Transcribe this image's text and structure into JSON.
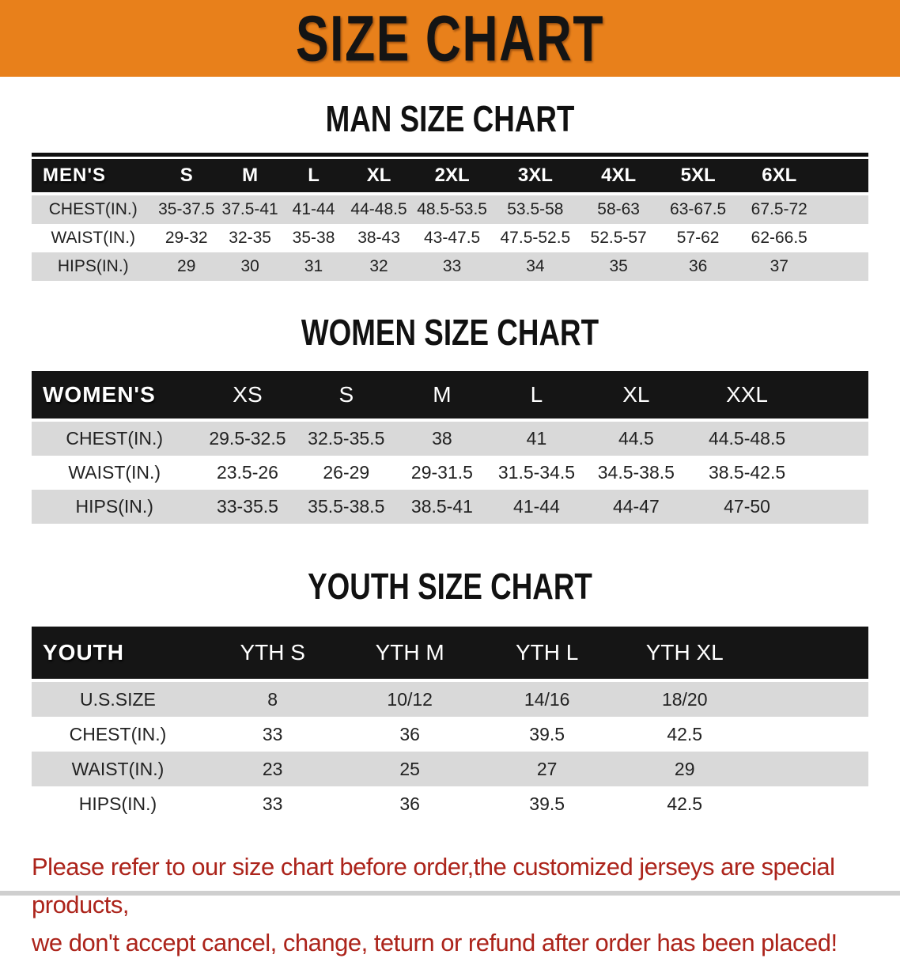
{
  "banner": {
    "title": "SIZE CHART"
  },
  "colors": {
    "banner_bg": "#E8801B",
    "header_bar": "#151515",
    "row_stripe": "#D9D9D9",
    "disclaimer_red": "#AC241B"
  },
  "sections": [
    {
      "heading": "MAN SIZE CHART",
      "table": {
        "label": "MEN'S",
        "columns": [
          "S",
          "M",
          "L",
          "XL",
          "2XL",
          "3XL",
          "4XL",
          "5XL",
          "6XL"
        ],
        "rows": [
          {
            "label": "CHEST(IN.)",
            "values": [
              "35-37.5",
              "37.5-41",
              "41-44",
              "44-48.5",
              "48.5-53.5",
              "53.5-58",
              "58-63",
              "63-67.5",
              "67.5-72"
            ]
          },
          {
            "label": "WAIST(IN.)",
            "values": [
              "29-32",
              "32-35",
              "35-38",
              "38-43",
              "43-47.5",
              "47.5-52.5",
              "52.5-57",
              "57-62",
              "62-66.5"
            ]
          },
          {
            "label": "HIPS(IN.)",
            "values": [
              "29",
              "30",
              "31",
              "32",
              "33",
              "34",
              "35",
              "36",
              "37"
            ]
          }
        ]
      }
    },
    {
      "heading": "WOMEN SIZE CHART",
      "table": {
        "label": "WOMEN'S",
        "columns": [
          "XS",
          "S",
          "M",
          "L",
          "XL",
          "XXL"
        ],
        "rows": [
          {
            "label": "CHEST(IN.)",
            "values": [
              "29.5-32.5",
              "32.5-35.5",
              "38",
              "41",
              "44.5",
              "44.5-48.5"
            ]
          },
          {
            "label": "WAIST(IN.)",
            "values": [
              "23.5-26",
              "26-29",
              "29-31.5",
              "31.5-34.5",
              "34.5-38.5",
              "38.5-42.5"
            ]
          },
          {
            "label": "HIPS(IN.)",
            "values": [
              "33-35.5",
              "35.5-38.5",
              "38.5-41",
              "41-44",
              "44-47",
              "47-50"
            ]
          }
        ]
      }
    },
    {
      "heading": "YOUTH SIZE CHART",
      "table": {
        "label": "YOUTH",
        "columns": [
          "YTH S",
          "YTH M",
          "YTH L",
          "YTH XL"
        ],
        "rows": [
          {
            "label": "U.S.SIZE",
            "values": [
              "8",
              "10/12",
              "14/16",
              "18/20"
            ]
          },
          {
            "label": "CHEST(IN.)",
            "values": [
              "33",
              "36",
              "39.5",
              "42.5"
            ]
          },
          {
            "label": "WAIST(IN.)",
            "values": [
              "23",
              "25",
              "27",
              "29"
            ]
          },
          {
            "label": "HIPS(IN.)",
            "values": [
              "33",
              "36",
              "39.5",
              "42.5"
            ]
          }
        ]
      }
    }
  ],
  "disclaimer": {
    "line1": "Please refer to our size chart before order,the customized jerseys are special products,",
    "line2": "we don't accept cancel, change, teturn or refund after order has been placed!"
  }
}
